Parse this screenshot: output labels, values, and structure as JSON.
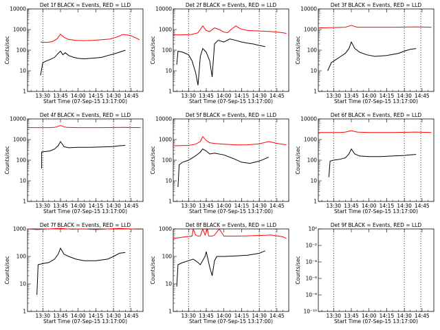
{
  "page": {
    "background": "#ffffff",
    "events_color": "#000000",
    "lld_color": "#ff0000"
  },
  "chart_data": [
    {
      "type": "line",
      "title": "Det 1f BLACK = Events, RED = LLD",
      "xlabel": "Start Time (07-Sep-15 13:17:00)",
      "ylabel": "Counts/sec",
      "yscale": "log",
      "ylim": [
        1,
        10000
      ],
      "xlim": [
        "13:17",
        "14:55"
      ],
      "xticks": [
        "13:30",
        "13:45",
        "14:00",
        "14:15",
        "14:30",
        "14:45"
      ],
      "yticks": [
        "1",
        "10",
        "100",
        "1000",
        "10000"
      ],
      "vlines": [
        "13:30",
        "14:30",
        "14:44"
      ],
      "series": [
        {
          "role": "lld",
          "color": "#ff0000",
          "x": [
            "13:28",
            "13:33",
            "13:38",
            "13:42",
            "13:45",
            "13:48",
            "13:52",
            "13:58",
            "14:05",
            "14:12",
            "14:20",
            "14:27",
            "14:32",
            "14:38",
            "14:44",
            "14:48",
            "14:52"
          ],
          "y": [
            250,
            240,
            260,
            350,
            600,
            420,
            330,
            300,
            290,
            300,
            320,
            350,
            420,
            580,
            520,
            420,
            320
          ]
        },
        {
          "role": "events",
          "color": "#000000",
          "x": [
            "13:28",
            "13:30",
            "13:33",
            "13:36",
            "13:40",
            "13:43",
            "13:45",
            "13:47",
            "13:49",
            "13:52",
            "13:56",
            "14:00",
            "14:05",
            "14:10",
            "14:15",
            "14:20",
            "14:25",
            "14:30",
            "14:35",
            "14:40"
          ],
          "y": [
            6,
            25,
            30,
            35,
            45,
            70,
            90,
            60,
            75,
            55,
            45,
            40,
            38,
            40,
            42,
            45,
            55,
            65,
            80,
            100
          ]
        }
      ]
    },
    {
      "type": "line",
      "title": "Det 2f BLACK = Events, RED = LLD",
      "xlabel": "Start Time (07-Sep-15 13:17:00)",
      "ylabel": "Counts/sec",
      "yscale": "log",
      "ylim": [
        1,
        10000
      ],
      "xlim": [
        "13:17",
        "14:55"
      ],
      "xticks": [
        "13:30",
        "13:45",
        "14:00",
        "14:15",
        "14:30",
        "14:45"
      ],
      "yticks": [
        "1",
        "10",
        "100",
        "1000",
        "10000"
      ],
      "vlines": [
        "13:30",
        "14:30",
        "14:44"
      ],
      "series": [
        {
          "role": "lld",
          "color": "#ff0000",
          "x": [
            "13:17",
            "13:25",
            "13:33",
            "13:38",
            "13:42",
            "13:45",
            "13:48",
            "13:52",
            "13:56",
            "14:00",
            "14:03",
            "14:06",
            "14:10",
            "14:14",
            "14:20",
            "14:30",
            "14:40",
            "14:50",
            "14:53"
          ],
          "y": [
            550,
            560,
            580,
            700,
            1500,
            900,
            800,
            1200,
            1000,
            750,
            700,
            1000,
            1500,
            1100,
            900,
            850,
            800,
            700,
            650
          ]
        },
        {
          "role": "events",
          "color": "#000000",
          "x": [
            "13:20",
            "13:21",
            "13:25",
            "13:30",
            "13:33",
            "13:36",
            "13:38",
            "13:40",
            "13:42",
            "13:45",
            "13:48",
            "13:50",
            "13:52",
            "13:55",
            "14:00",
            "14:05",
            "14:10",
            "14:15",
            "14:20",
            "14:25",
            "14:30",
            "14:35"
          ],
          "y": [
            20,
            90,
            80,
            60,
            30,
            8,
            2,
            50,
            120,
            80,
            30,
            5,
            200,
            300,
            250,
            350,
            300,
            250,
            220,
            200,
            170,
            150
          ]
        }
      ]
    },
    {
      "type": "line",
      "title": "Det 3f BLACK = Events, RED = LLD",
      "xlabel": "Start Time (07-Sep-15 13:17:00)",
      "ylabel": "Counts/sec",
      "yscale": "log",
      "ylim": [
        1,
        10000
      ],
      "xlim": [
        "13:17",
        "14:55"
      ],
      "xticks": [
        "13:30",
        "13:45",
        "14:00",
        "14:15",
        "14:30",
        "14:45"
      ],
      "yticks": [
        "1",
        "10",
        "100",
        "1000",
        "10000"
      ],
      "vlines": [
        "13:30",
        "14:30",
        "14:44"
      ],
      "series": [
        {
          "role": "lld",
          "color": "#ff0000",
          "x": [
            "13:17",
            "13:30",
            "13:40",
            "13:45",
            "13:50",
            "14:00",
            "14:20",
            "14:40",
            "14:53"
          ],
          "y": [
            1200,
            1250,
            1300,
            1600,
            1300,
            1300,
            1300,
            1350,
            1300
          ]
        },
        {
          "role": "events",
          "color": "#000000",
          "x": [
            "13:25",
            "13:28",
            "13:32",
            "13:36",
            "13:40",
            "13:43",
            "13:45",
            "13:48",
            "13:52",
            "13:58",
            "14:05",
            "14:15",
            "14:25",
            "14:30",
            "14:35",
            "14:40"
          ],
          "y": [
            10,
            25,
            35,
            50,
            70,
            120,
            250,
            120,
            80,
            60,
            50,
            55,
            70,
            90,
            110,
            120
          ]
        }
      ]
    },
    {
      "type": "line",
      "title": "Det 4f BLACK = Events, RED = LLD",
      "xlabel": "Start Time (07-Sep-15 13:17:00)",
      "ylabel": "Counts/sec",
      "yscale": "log",
      "ylim": [
        1,
        10000
      ],
      "xlim": [
        "13:17",
        "14:55"
      ],
      "xticks": [
        "13:30",
        "13:45",
        "14:00",
        "14:15",
        "14:30",
        "14:45"
      ],
      "yticks": [
        "1",
        "10",
        "100",
        "1000",
        "10000"
      ],
      "vlines": [
        "13:30",
        "14:30",
        "14:44"
      ],
      "series": [
        {
          "role": "lld",
          "color": "#ff0000",
          "x": [
            "13:17",
            "13:35",
            "13:40",
            "13:45",
            "13:50",
            "14:00",
            "14:20",
            "14:40",
            "14:53"
          ],
          "y": [
            3800,
            3800,
            3900,
            4800,
            3900,
            3800,
            3800,
            3900,
            3800
          ]
        },
        {
          "role": "events",
          "color": "#000000",
          "x": [
            "13:29",
            "13:29",
            "13:31",
            "13:36",
            "13:40",
            "13:43",
            "13:45",
            "13:48",
            "13:52",
            "14:00",
            "14:10",
            "14:20",
            "14:30",
            "14:35",
            "14:40"
          ],
          "y": [
            40,
            250,
            260,
            280,
            350,
            500,
            800,
            450,
            400,
            420,
            420,
            440,
            460,
            500,
            520
          ]
        }
      ]
    },
    {
      "type": "line",
      "title": "Det 5f BLACK = Events, RED = LLD",
      "xlabel": "Start Time (07-Sep-15 13:17:00)",
      "ylabel": "Counts/sec",
      "yscale": "log",
      "ylim": [
        1,
        10000
      ],
      "xlim": [
        "13:17",
        "14:55"
      ],
      "xticks": [
        "13:30",
        "13:45",
        "14:00",
        "14:15",
        "14:30",
        "14:45"
      ],
      "yticks": [
        "1",
        "10",
        "100",
        "1000",
        "10000"
      ],
      "vlines": [
        "13:30",
        "14:30",
        "14:44"
      ],
      "series": [
        {
          "role": "lld",
          "color": "#ff0000",
          "x": [
            "13:17",
            "13:30",
            "13:36",
            "13:40",
            "13:42",
            "13:45",
            "13:48",
            "13:52",
            "14:00",
            "14:10",
            "14:20",
            "14:30",
            "14:38",
            "14:45",
            "14:53"
          ],
          "y": [
            500,
            520,
            600,
            800,
            1400,
            900,
            700,
            650,
            600,
            550,
            560,
            620,
            800,
            650,
            560
          ]
        },
        {
          "role": "events",
          "color": "#000000",
          "x": [
            "13:21",
            "13:22",
            "13:25",
            "13:30",
            "13:35",
            "13:38",
            "13:40",
            "13:42",
            "13:45",
            "13:48",
            "13:52",
            "14:00",
            "14:08",
            "14:15",
            "14:22",
            "14:30",
            "14:38"
          ],
          "y": [
            5,
            60,
            80,
            100,
            150,
            200,
            250,
            350,
            280,
            200,
            220,
            180,
            120,
            80,
            70,
            90,
            140
          ]
        }
      ]
    },
    {
      "type": "line",
      "title": "Det 6f BLACK = Events, RED = LLD",
      "xlabel": "Start Time (07-Sep-15 13:17:00)",
      "ylabel": "Counts/sec",
      "yscale": "log",
      "ylim": [
        1,
        10000
      ],
      "xlim": [
        "13:17",
        "14:55"
      ],
      "xticks": [
        "13:30",
        "13:45",
        "14:00",
        "14:15",
        "14:30",
        "14:45"
      ],
      "yticks": [
        "1",
        "10",
        "100",
        "1000",
        "10000"
      ],
      "vlines": [
        "13:30",
        "14:30",
        "14:44"
      ],
      "series": [
        {
          "role": "lld",
          "color": "#ff0000",
          "x": [
            "13:17",
            "13:35",
            "13:40",
            "13:45",
            "13:50",
            "14:00",
            "14:20",
            "14:40",
            "14:53"
          ],
          "y": [
            2200,
            2200,
            2300,
            2700,
            2300,
            2200,
            2200,
            2300,
            2200
          ]
        },
        {
          "role": "events",
          "color": "#000000",
          "x": [
            "13:26",
            "13:27",
            "13:30",
            "13:35",
            "13:40",
            "13:43",
            "13:45",
            "13:48",
            "13:52",
            "14:00",
            "14:10",
            "14:20",
            "14:30",
            "14:35",
            "14:40"
          ],
          "y": [
            15,
            90,
            100,
            110,
            130,
            200,
            350,
            200,
            160,
            150,
            150,
            160,
            170,
            180,
            190
          ]
        }
      ]
    },
    {
      "type": "line",
      "title": "Det 7f BLACK = Events, RED = LLD",
      "xlabel": "Start Time (07-Sep-15 13:17:00)",
      "ylabel": "Counts/sec",
      "yscale": "log",
      "ylim": [
        1,
        1000
      ],
      "xlim": [
        "13:17",
        "14:55"
      ],
      "xticks": [
        "13:30",
        "13:45",
        "14:00",
        "14:15",
        "14:30",
        "14:45"
      ],
      "yticks": [
        "1",
        "10",
        "100",
        "1000"
      ],
      "vlines": [
        "13:30",
        "14:30",
        "14:44"
      ],
      "series": [
        {
          "role": "lld",
          "color": "#ff0000",
          "x": [
            "13:17",
            "13:25",
            "13:35",
            "13:45",
            "13:55",
            "14:05",
            "14:15",
            "14:25",
            "14:35",
            "14:45",
            "14:53"
          ],
          "y": [
            1000,
            950,
            1000,
            1050,
            980,
            1000,
            950,
            1000,
            1050,
            1000,
            980
          ]
        },
        {
          "role": "events",
          "color": "#000000",
          "x": [
            "13:25",
            "13:26",
            "13:30",
            "13:35",
            "13:40",
            "13:43",
            "13:45",
            "13:48",
            "13:52",
            "13:58",
            "14:05",
            "14:15",
            "14:25",
            "14:30",
            "14:35",
            "14:40"
          ],
          "y": [
            4,
            50,
            55,
            60,
            80,
            120,
            200,
            120,
            100,
            80,
            70,
            70,
            80,
            100,
            130,
            140
          ]
        }
      ]
    },
    {
      "type": "line",
      "title": "Det 8f BLACK = Events, RED = LLD",
      "xlabel": "Start Time (07-Sep-15 13:17:00)",
      "ylabel": "Counts/sec",
      "yscale": "log",
      "ylim": [
        1,
        1000
      ],
      "xlim": [
        "13:17",
        "14:55"
      ],
      "xticks": [
        "13:30",
        "13:45",
        "14:00",
        "14:15",
        "14:30",
        "14:45"
      ],
      "yticks": [
        "1",
        "10",
        "100",
        "1000"
      ],
      "vlines": [
        "13:30",
        "14:30",
        "14:44"
      ],
      "series": [
        {
          "role": "lld",
          "color": "#ff0000",
          "x": [
            "13:17",
            "13:25",
            "13:33",
            "13:34",
            "13:36",
            "13:38",
            "13:40",
            "13:42",
            "13:44",
            "13:46",
            "13:47",
            "13:50",
            "13:52",
            "13:56",
            "14:00",
            "14:10",
            "14:20",
            "14:30",
            "14:40",
            "14:50",
            "14:53"
          ],
          "y": [
            450,
            500,
            550,
            1000,
            600,
            550,
            560,
            1000,
            600,
            1000,
            560,
            550,
            600,
            1000,
            550,
            550,
            560,
            580,
            600,
            520,
            450
          ]
        },
        {
          "role": "events",
          "color": "#000000",
          "x": [
            "13:20",
            "13:21",
            "13:25",
            "13:30",
            "13:34",
            "13:38",
            "13:40",
            "13:44",
            "13:45",
            "13:48",
            "13:50",
            "13:52",
            "13:54",
            "14:00",
            "14:10",
            "14:20",
            "14:30",
            "14:35"
          ],
          "y": [
            8,
            50,
            60,
            70,
            80,
            60,
            50,
            100,
            150,
            40,
            20,
            70,
            100,
            100,
            105,
            110,
            130,
            160
          ]
        }
      ]
    },
    {
      "type": "line",
      "title": "Det 9f BLACK = Events, RED = LLD",
      "xlabel": "Start Time (07-Sep-15 13:17:00)",
      "ylabel": "Counts/sec",
      "yscale": "log",
      "ylim": [
        1e-10,
        1
      ],
      "xlim": [
        "13:17",
        "14:55"
      ],
      "xticks": [
        "13:30",
        "13:45",
        "14:00",
        "14:15",
        "14:30",
        "14:45"
      ],
      "yticks": [
        "10⁻¹⁰",
        "10⁻⁸",
        "10⁻⁶",
        "10⁻⁴",
        "10⁻²",
        "10⁰"
      ],
      "vlines": [
        "13:30",
        "14:30",
        "14:44"
      ],
      "series": []
    }
  ]
}
